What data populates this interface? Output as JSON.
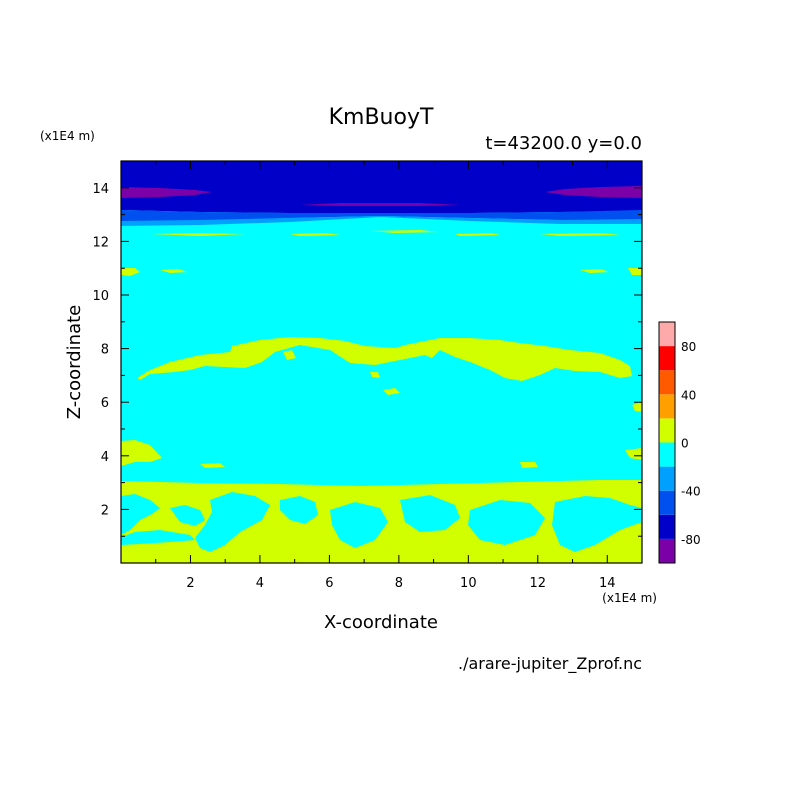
{
  "chart_data": {
    "type": "heatmap",
    "title": "KmBuoyT",
    "subtitle": "t=43200.0 y=0.0",
    "xlabel": "X-coordinate",
    "ylabel": "Z-coordinate",
    "x_unit": "(x1E4 m)",
    "y_unit": "(x1E4 m)",
    "source_file": "./arare-jupiter_Zprof.nc",
    "xlim": [
      0,
      15
    ],
    "ylim": [
      0,
      15
    ],
    "x_ticks": [
      "2",
      "4",
      "6",
      "8",
      "10",
      "12",
      "14"
    ],
    "y_ticks": [
      "2",
      "4",
      "6",
      "8",
      "10",
      "12",
      "14"
    ],
    "colorbar": {
      "levels": [
        -100,
        -80,
        -60,
        -40,
        -20,
        0,
        20,
        40,
        60,
        80,
        100
      ],
      "tick_labels": [
        "-80",
        "-40",
        "0",
        "40",
        "80"
      ],
      "colors": [
        "#7b00a8",
        "#0000c8",
        "#0050f0",
        "#00a0ff",
        "#00ffff",
        "#d2ff00",
        "#ffa000",
        "#ff5a00",
        "#ff0000",
        "#ffaaaa"
      ]
    },
    "background_color": "#00ffff",
    "regions": [
      {
        "name": "upper layer z>13",
        "level": "-80 to -60",
        "color": "#0000c8"
      },
      {
        "name": "transition z 12.4-13",
        "level": "-60 to -20",
        "color": "#0050f0"
      },
      {
        "name": "purple cores z~13.5",
        "level": "-100 to -80",
        "color": "#7b00a8"
      },
      {
        "name": "middle layer z 3-12",
        "level": "-20 to 0",
        "color": "#00ffff"
      },
      {
        "name": "yellow bands z~7-8.3",
        "level": "0 to 20",
        "color": "#d2ff00"
      },
      {
        "name": "lower layer z<3",
        "level": "0 to 20",
        "color": "#d2ff00"
      }
    ]
  }
}
